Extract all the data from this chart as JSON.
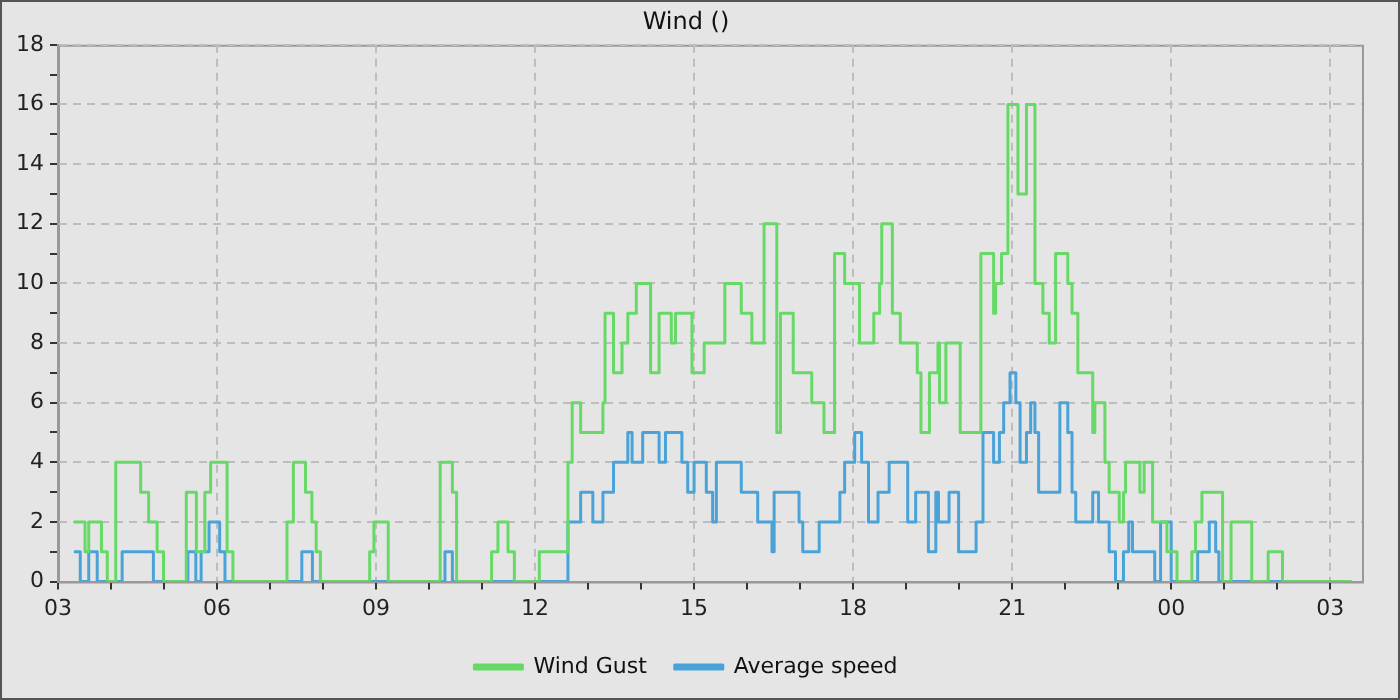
{
  "chart_data": {
    "type": "step",
    "title": "Wind ()",
    "legend": "bottom",
    "grid": true,
    "xlim": [
      3,
      27.6
    ],
    "xticks": [
      {
        "value": 3,
        "label": "03"
      },
      {
        "value": 4,
        "label": null
      },
      {
        "value": 5,
        "label": null
      },
      {
        "value": 6,
        "label": "06"
      },
      {
        "value": 7,
        "label": null
      },
      {
        "value": 8,
        "label": null
      },
      {
        "value": 9,
        "label": "09"
      },
      {
        "value": 10,
        "label": null
      },
      {
        "value": 11,
        "label": null
      },
      {
        "value": 12,
        "label": "12"
      },
      {
        "value": 13,
        "label": null
      },
      {
        "value": 14,
        "label": null
      },
      {
        "value": 15,
        "label": "15"
      },
      {
        "value": 16,
        "label": null
      },
      {
        "value": 17,
        "label": null
      },
      {
        "value": 18,
        "label": "18"
      },
      {
        "value": 19,
        "label": null
      },
      {
        "value": 20,
        "label": null
      },
      {
        "value": 21,
        "label": "21"
      },
      {
        "value": 22,
        "label": null
      },
      {
        "value": 23,
        "label": null
      },
      {
        "value": 24,
        "label": "00"
      },
      {
        "value": 25,
        "label": null
      },
      {
        "value": 26,
        "label": null
      },
      {
        "value": 27,
        "label": "03"
      }
    ],
    "ylim": [
      0,
      18
    ],
    "yticks": [
      0,
      {
        "value": 1,
        "label": null
      },
      2,
      {
        "value": 3,
        "label": null
      },
      4,
      {
        "value": 5,
        "label": null
      },
      6,
      {
        "value": 7,
        "label": null
      },
      8,
      {
        "value": 9,
        "label": null
      },
      10,
      {
        "value": 11,
        "label": null
      },
      12,
      {
        "value": 13,
        "label": null
      },
      14,
      {
        "value": 15,
        "label": null
      },
      16,
      {
        "value": 17,
        "label": null
      },
      18
    ],
    "series": [
      {
        "name": "Wind Gust",
        "color": "#66d966",
        "x": [
          3.3,
          3.51,
          3.58,
          3.82,
          3.93,
          4.09,
          4.56,
          4.71,
          4.87,
          4.99,
          5.42,
          5.61,
          5.77,
          5.88,
          6.19,
          6.3,
          7.32,
          7.44,
          7.67,
          7.79,
          7.87,
          7.95,
          8.88,
          8.96,
          9.23,
          10.21,
          10.44,
          10.52,
          11.18,
          11.3,
          11.49,
          11.61,
          12.08,
          12.62,
          12.7,
          12.86,
          13.09,
          13.28,
          13.32,
          13.48,
          13.64,
          13.75,
          13.91,
          14.18,
          14.34,
          14.57,
          14.65,
          14.96,
          15.19,
          15.58,
          15.89,
          16.09,
          16.32,
          16.56,
          16.63,
          16.87,
          17.22,
          17.45,
          17.65,
          17.84,
          18.12,
          18.39,
          18.5,
          18.54,
          18.74,
          18.89,
          19.21,
          19.28,
          19.44,
          19.6,
          19.63,
          19.75,
          20.02,
          20.41,
          20.65,
          20.69,
          20.8,
          20.92,
          21.11,
          21.27,
          21.43,
          21.58,
          21.7,
          21.82,
          22.05,
          22.13,
          22.24,
          22.52,
          22.56,
          22.75,
          22.83,
          23.02,
          23.1,
          23.14,
          23.41,
          23.49,
          23.65,
          23.92,
          24.11,
          24.39,
          24.46,
          24.58,
          24.97,
          25.13,
          25.52,
          25.83,
          26.1,
          27.4
        ],
        "values": [
          2,
          1,
          2,
          1,
          0,
          4,
          3,
          2,
          1,
          0,
          3,
          1,
          3,
          4,
          1,
          0,
          2,
          4,
          3,
          2,
          1,
          0,
          1,
          2,
          0,
          4,
          3,
          0,
          1,
          2,
          1,
          0,
          1,
          4,
          6,
          5,
          5,
          6,
          9,
          7,
          8,
          9,
          10,
          7,
          9,
          8,
          9,
          7,
          8,
          10,
          9,
          8,
          12,
          5,
          9,
          7,
          6,
          5,
          11,
          10,
          8,
          9,
          10,
          12,
          9,
          8,
          7,
          5,
          7,
          8,
          6,
          8,
          5,
          11,
          9,
          10,
          11,
          16,
          13,
          16,
          10,
          9,
          8,
          11,
          10,
          9,
          7,
          5,
          6,
          4,
          3,
          2,
          3,
          4,
          3,
          4,
          2,
          1,
          0,
          1,
          2,
          3,
          0,
          2,
          0,
          1,
          0,
          0
        ]
      },
      {
        "name": "Average speed",
        "color": "#4aa3d8",
        "x": [
          3.3,
          3.42,
          3.58,
          3.74,
          4.21,
          4.8,
          5.45,
          5.6,
          5.7,
          5.85,
          6.05,
          6.15,
          7.6,
          7.8,
          10.3,
          10.44,
          12.62,
          12.86,
          13.09,
          13.28,
          13.48,
          13.75,
          13.83,
          14.03,
          14.34,
          14.46,
          14.77,
          14.88,
          15.0,
          15.23,
          15.35,
          15.42,
          15.89,
          16.2,
          16.47,
          16.51,
          16.98,
          17.05,
          17.36,
          17.75,
          17.84,
          18.03,
          18.16,
          18.29,
          18.47,
          18.68,
          19.03,
          19.18,
          19.42,
          19.56,
          19.61,
          19.81,
          19.99,
          20.32,
          20.45,
          20.65,
          20.76,
          20.84,
          20.96,
          21.07,
          21.15,
          21.27,
          21.35,
          21.43,
          21.5,
          21.9,
          22.05,
          22.13,
          22.2,
          22.52,
          22.63,
          22.83,
          22.95,
          23.1,
          23.2,
          23.27,
          23.69,
          23.8,
          24.0,
          24.5,
          24.72,
          24.84,
          24.9,
          27.4
        ],
        "values": [
          1,
          0,
          1,
          0,
          1,
          0,
          1,
          0,
          1,
          2,
          1,
          0,
          1,
          0,
          1,
          0,
          2,
          3,
          2,
          3,
          4,
          5,
          4,
          5,
          4,
          5,
          4,
          3,
          4,
          3,
          2,
          4,
          3,
          2,
          1,
          3,
          2,
          1,
          2,
          3,
          4,
          5,
          4,
          2,
          3,
          4,
          2,
          3,
          1,
          3,
          2,
          3,
          1,
          2,
          5,
          4,
          5,
          6,
          7,
          6,
          4,
          5,
          6,
          5,
          3,
          6,
          5,
          3,
          2,
          3,
          2,
          1,
          0,
          1,
          2,
          1,
          0,
          2,
          0,
          1,
          2,
          1,
          0,
          0
        ]
      }
    ]
  }
}
